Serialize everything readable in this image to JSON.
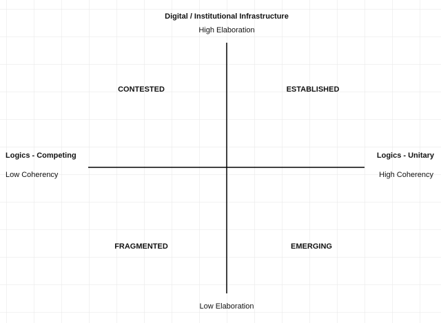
{
  "axes": {
    "vertical": {
      "title": "Digital / Institutional Infrastructure",
      "top_label": "High Elaboration",
      "bottom_label": "Low Elaboration"
    },
    "left": {
      "title": "Logics - Competing",
      "label": "Low Coherency"
    },
    "right": {
      "title": "Logics - Unitary",
      "label": "High Coherency"
    }
  },
  "quadrants": {
    "top_left": "CONTESTED",
    "top_right": "ESTABLISHED",
    "bottom_left": "FRAGMENTED",
    "bottom_right": "EMERGING"
  }
}
